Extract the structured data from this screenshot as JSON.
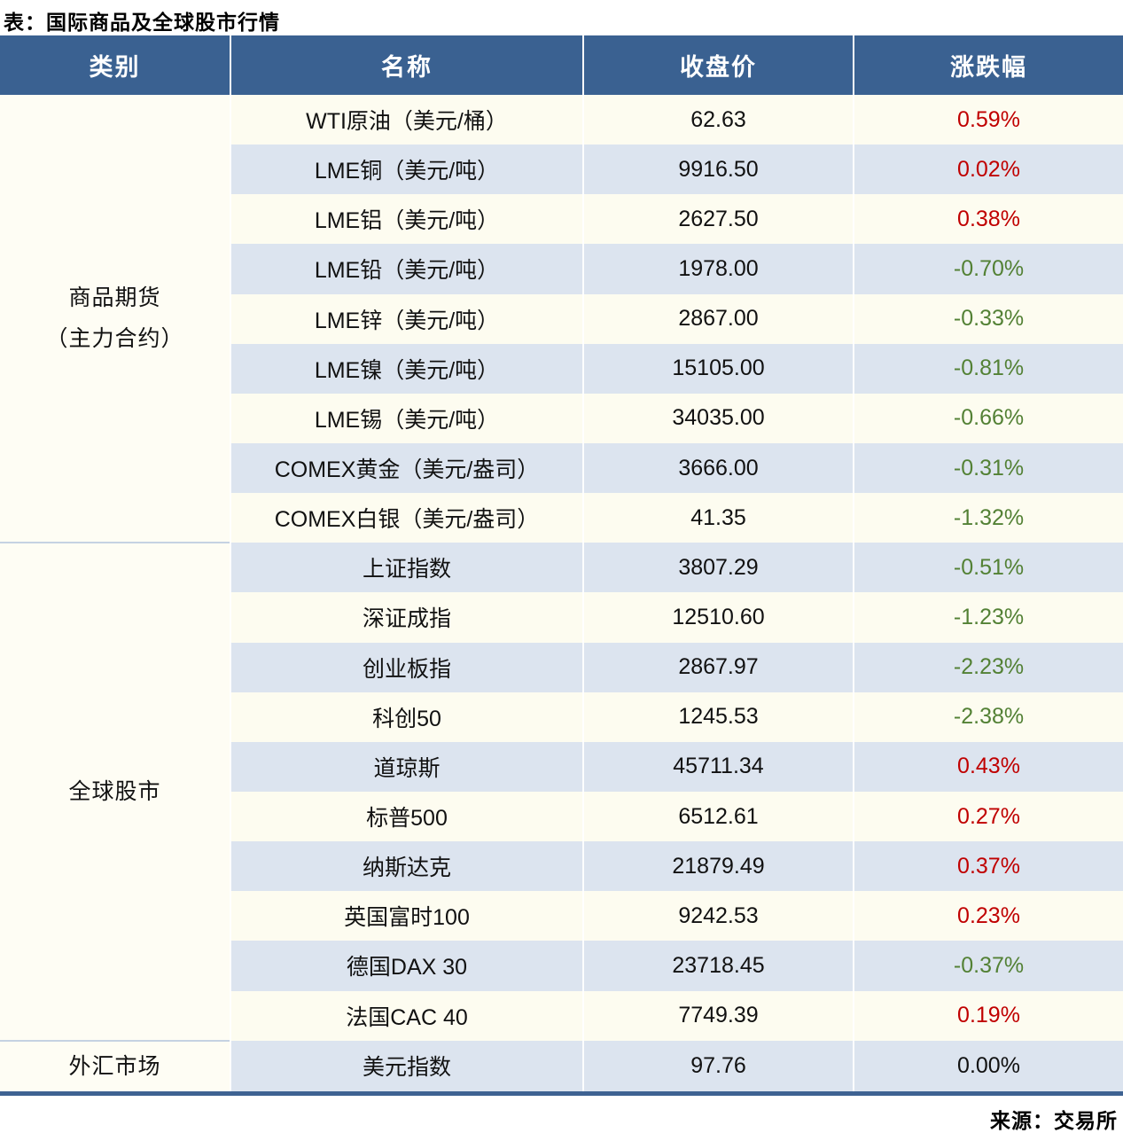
{
  "title": "表：国际商品及全球股市行情",
  "source": "来源：交易所",
  "columns": {
    "category": "类别",
    "name": "名称",
    "close": "收盘价",
    "change": "涨跌幅"
  },
  "groups": [
    {
      "label_line1": "商品期货",
      "label_line2": "（主力合约）",
      "row_count": 9
    },
    {
      "label": "全球股市",
      "row_count": 10
    },
    {
      "label": "外汇市场",
      "row_count": 1
    }
  ],
  "rows": [
    {
      "name": "WTI原油（美元/桶）",
      "close": "62.63",
      "change": "0.59%",
      "direction": "up"
    },
    {
      "name": "LME铜（美元/吨）",
      "close": "9916.50",
      "change": "0.02%",
      "direction": "up"
    },
    {
      "name": "LME铝（美元/吨）",
      "close": "2627.50",
      "change": "0.38%",
      "direction": "up"
    },
    {
      "name": "LME铅（美元/吨）",
      "close": "1978.00",
      "change": "-0.70%",
      "direction": "down"
    },
    {
      "name": "LME锌（美元/吨）",
      "close": "2867.00",
      "change": "-0.33%",
      "direction": "down"
    },
    {
      "name": "LME镍（美元/吨）",
      "close": "15105.00",
      "change": "-0.81%",
      "direction": "down"
    },
    {
      "name": "LME锡（美元/吨）",
      "close": "34035.00",
      "change": "-0.66%",
      "direction": "down"
    },
    {
      "name": "COMEX黄金（美元/盎司）",
      "close": "3666.00",
      "change": "-0.31%",
      "direction": "down"
    },
    {
      "name": "COMEX白银（美元/盎司）",
      "close": "41.35",
      "change": "-1.32%",
      "direction": "down"
    },
    {
      "name": "上证指数",
      "close": "3807.29",
      "change": "-0.51%",
      "direction": "down"
    },
    {
      "name": "深证成指",
      "close": "12510.60",
      "change": "-1.23%",
      "direction": "down"
    },
    {
      "name": "创业板指",
      "close": "2867.97",
      "change": "-2.23%",
      "direction": "down"
    },
    {
      "name": "科创50",
      "close": "1245.53",
      "change": "-2.38%",
      "direction": "down"
    },
    {
      "name": "道琼斯",
      "close": "45711.34",
      "change": "0.43%",
      "direction": "up"
    },
    {
      "name": "标普500",
      "close": "6512.61",
      "change": "0.27%",
      "direction": "up"
    },
    {
      "name": "纳斯达克",
      "close": "21879.49",
      "change": "0.37%",
      "direction": "up"
    },
    {
      "name": "英国富时100",
      "close": "9242.53",
      "change": "0.23%",
      "direction": "up"
    },
    {
      "name": "德国DAX 30",
      "close": "23718.45",
      "change": "-0.37%",
      "direction": "down"
    },
    {
      "name": "法国CAC 40",
      "close": "7749.39",
      "change": "0.19%",
      "direction": "up"
    },
    {
      "name": "美元指数",
      "close": "97.76",
      "change": "0.00%",
      "direction": "flat"
    }
  ],
  "colors": {
    "header_bg": "#3a6191",
    "row_bg": "#fdfcf0",
    "row_alt_bg": "#dce4ef",
    "up_red": "#c00000",
    "down_green": "#538135",
    "flat_black": "#111111",
    "bottom_border": "#3e6292",
    "group_separator": "#c5d2e2"
  },
  "chart_data": {
    "type": "table",
    "title": "表：国际商品及全球股市行情",
    "source": "来源：交易所",
    "columns": [
      "类别",
      "名称",
      "收盘价",
      "涨跌幅"
    ],
    "rows": [
      [
        "商品期货（主力合约）",
        "WTI原油（美元/桶）",
        62.63,
        "0.59%"
      ],
      [
        "商品期货（主力合约）",
        "LME铜（美元/吨）",
        9916.5,
        "0.02%"
      ],
      [
        "商品期货（主力合约）",
        "LME铝（美元/吨）",
        2627.5,
        "0.38%"
      ],
      [
        "商品期货（主力合约）",
        "LME铅（美元/吨）",
        1978.0,
        "-0.70%"
      ],
      [
        "商品期货（主力合约）",
        "LME锌（美元/吨）",
        2867.0,
        "-0.33%"
      ],
      [
        "商品期货（主力合约）",
        "LME镍（美元/吨）",
        15105.0,
        "-0.81%"
      ],
      [
        "商品期货（主力合约）",
        "LME锡（美元/吨）",
        34035.0,
        "-0.66%"
      ],
      [
        "商品期货（主力合约）",
        "COMEX黄金（美元/盎司）",
        3666.0,
        "-0.31%"
      ],
      [
        "商品期货（主力合约）",
        "COMEX白银（美元/盎司）",
        41.35,
        "-1.32%"
      ],
      [
        "全球股市",
        "上证指数",
        3807.29,
        "-0.51%"
      ],
      [
        "全球股市",
        "深证成指",
        12510.6,
        "-1.23%"
      ],
      [
        "全球股市",
        "创业板指",
        2867.97,
        "-2.23%"
      ],
      [
        "全球股市",
        "科创50",
        1245.53,
        "-2.38%"
      ],
      [
        "全球股市",
        "道琼斯",
        45711.34,
        "0.43%"
      ],
      [
        "全球股市",
        "标普500",
        6512.61,
        "0.27%"
      ],
      [
        "全球股市",
        "纳斯达克",
        21879.49,
        "0.37%"
      ],
      [
        "全球股市",
        "英国富时100",
        9242.53,
        "0.23%"
      ],
      [
        "全球股市",
        "德国DAX 30",
        23718.45,
        "-0.37%"
      ],
      [
        "全球股市",
        "法国CAC 40",
        7749.39,
        "0.19%"
      ],
      [
        "外汇市场",
        "美元指数",
        97.76,
        "0.00%"
      ]
    ]
  }
}
